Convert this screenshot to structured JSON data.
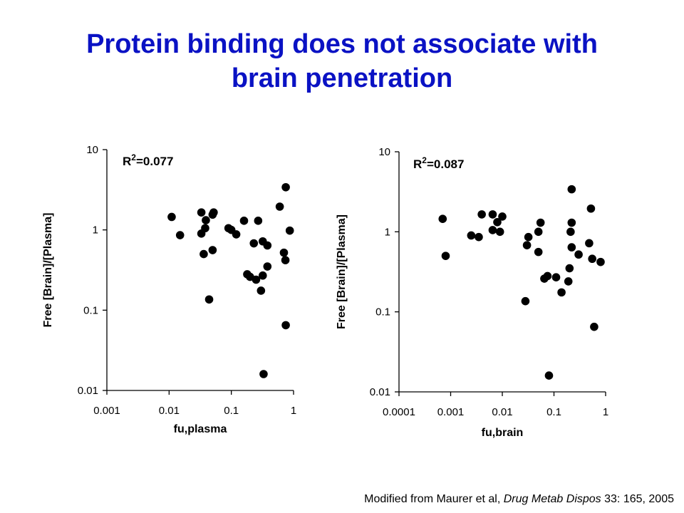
{
  "slide": {
    "title_line1": "Protein binding does not associate with",
    "title_line2": "brain penetration",
    "title_color": "#0a12c4"
  },
  "footnote": {
    "prefix": "Modified from Maurer et al, ",
    "journal": "Drug Metab Dispos",
    "suffix": " 33: 165, 2005"
  },
  "chart_data": [
    {
      "type": "scatter",
      "xlabel": "fu,plasma",
      "ylabel": "Free [Brain]/[Plasma]",
      "x_scale": "log",
      "y_scale": "log",
      "xlim": [
        0.001,
        1
      ],
      "ylim": [
        0.01,
        10
      ],
      "x_ticks": [
        "0.001",
        "0.01",
        "0.1",
        "1"
      ],
      "y_ticks": [
        "10",
        "1",
        "0.1",
        "0.01"
      ],
      "annotation": "R",
      "annotation_sup": "2",
      "annotation_value": "=0.077",
      "marker_color": "#000000",
      "points": [
        {
          "x": 0.011,
          "y": 1.45
        },
        {
          "x": 0.015,
          "y": 0.86
        },
        {
          "x": 0.033,
          "y": 1.65
        },
        {
          "x": 0.033,
          "y": 0.9
        },
        {
          "x": 0.036,
          "y": 0.5
        },
        {
          "x": 0.038,
          "y": 1.05
        },
        {
          "x": 0.039,
          "y": 1.32
        },
        {
          "x": 0.044,
          "y": 0.136
        },
        {
          "x": 0.05,
          "y": 1.55
        },
        {
          "x": 0.05,
          "y": 0.56
        },
        {
          "x": 0.052,
          "y": 1.65
        },
        {
          "x": 0.09,
          "y": 1.05
        },
        {
          "x": 0.1,
          "y": 1.0
        },
        {
          "x": 0.12,
          "y": 0.88
        },
        {
          "x": 0.16,
          "y": 1.3
        },
        {
          "x": 0.18,
          "y": 0.28
        },
        {
          "x": 0.2,
          "y": 0.26
        },
        {
          "x": 0.23,
          "y": 0.68
        },
        {
          "x": 0.25,
          "y": 0.24
        },
        {
          "x": 0.27,
          "y": 1.3
        },
        {
          "x": 0.3,
          "y": 0.175
        },
        {
          "x": 0.32,
          "y": 0.72
        },
        {
          "x": 0.32,
          "y": 0.27
        },
        {
          "x": 0.33,
          "y": 0.016
        },
        {
          "x": 0.38,
          "y": 0.64
        },
        {
          "x": 0.38,
          "y": 0.35
        },
        {
          "x": 0.6,
          "y": 1.95
        },
        {
          "x": 0.7,
          "y": 0.52
        },
        {
          "x": 0.74,
          "y": 0.42
        },
        {
          "x": 0.75,
          "y": 3.4
        },
        {
          "x": 0.75,
          "y": 0.065
        },
        {
          "x": 0.87,
          "y": 0.98
        }
      ]
    },
    {
      "type": "scatter",
      "xlabel": "fu,brain",
      "ylabel": "Free [Brain]/[Plasma]",
      "x_scale": "log",
      "y_scale": "log",
      "xlim": [
        0.0001,
        1
      ],
      "ylim": [
        0.01,
        10
      ],
      "x_ticks": [
        "0.0001",
        "0.001",
        "0.01",
        "0.1",
        "1"
      ],
      "y_ticks": [
        "10",
        "1",
        "0.1",
        "0.01"
      ],
      "annotation": "R",
      "annotation_sup": "2",
      "annotation_value": "=0.087",
      "marker_color": "#000000",
      "points": [
        {
          "x": 0.0007,
          "y": 1.45
        },
        {
          "x": 0.0008,
          "y": 0.5
        },
        {
          "x": 0.0025,
          "y": 0.9
        },
        {
          "x": 0.0035,
          "y": 0.86
        },
        {
          "x": 0.004,
          "y": 1.65
        },
        {
          "x": 0.0065,
          "y": 1.65
        },
        {
          "x": 0.0065,
          "y": 1.05
        },
        {
          "x": 0.008,
          "y": 1.32
        },
        {
          "x": 0.009,
          "y": 1.0
        },
        {
          "x": 0.01,
          "y": 1.55
        },
        {
          "x": 0.028,
          "y": 0.136
        },
        {
          "x": 0.03,
          "y": 0.68
        },
        {
          "x": 0.032,
          "y": 0.86
        },
        {
          "x": 0.05,
          "y": 1.0
        },
        {
          "x": 0.05,
          "y": 0.56
        },
        {
          "x": 0.055,
          "y": 1.3
        },
        {
          "x": 0.065,
          "y": 0.26
        },
        {
          "x": 0.075,
          "y": 0.28
        },
        {
          "x": 0.08,
          "y": 0.016
        },
        {
          "x": 0.11,
          "y": 0.27
        },
        {
          "x": 0.14,
          "y": 0.175
        },
        {
          "x": 0.19,
          "y": 0.24
        },
        {
          "x": 0.2,
          "y": 0.35
        },
        {
          "x": 0.21,
          "y": 1.0
        },
        {
          "x": 0.22,
          "y": 3.4
        },
        {
          "x": 0.22,
          "y": 1.3
        },
        {
          "x": 0.22,
          "y": 0.64
        },
        {
          "x": 0.3,
          "y": 0.52
        },
        {
          "x": 0.48,
          "y": 0.72
        },
        {
          "x": 0.52,
          "y": 1.95
        },
        {
          "x": 0.55,
          "y": 0.46
        },
        {
          "x": 0.6,
          "y": 0.065
        },
        {
          "x": 0.8,
          "y": 0.42
        }
      ]
    }
  ]
}
